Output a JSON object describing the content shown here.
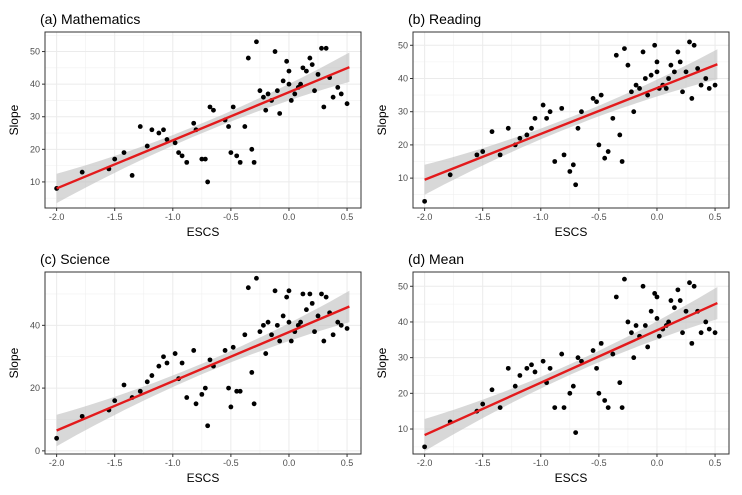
{
  "chart_data": [
    {
      "type": "scatter",
      "title": "(a) Mathematics",
      "xlabel": "ESCS",
      "ylabel": "Slope",
      "xlim": [
        -2.1,
        0.62
      ],
      "ylim": [
        2,
        56
      ],
      "xticks": [
        -2.0,
        -1.5,
        -1.0,
        -0.5,
        0.0,
        0.5
      ],
      "yticks": [
        10,
        20,
        30,
        40,
        50
      ],
      "xtick_labels": [
        "-2.0",
        "-1.5",
        "-1.0",
        "-0.5",
        "0.0",
        "0.5"
      ],
      "ytick_labels": [
        "10",
        "20",
        "30",
        "40",
        "50"
      ],
      "grid": true,
      "colors": {
        "points": "#000000",
        "fit_line": "#e31a1c",
        "confidence_band": "#bebebe"
      },
      "fit": {
        "x": [
          -2.0,
          0.52
        ],
        "y": [
          8.0,
          45.2
        ],
        "band_halfwidth_ends": 4.5,
        "band_halfwidth_center": 1.5
      },
      "points": {
        "x": [
          -2.0,
          -1.78,
          -1.55,
          -1.5,
          -1.42,
          -1.35,
          -1.28,
          -1.22,
          -1.18,
          -1.12,
          -1.08,
          -1.05,
          -0.98,
          -0.95,
          -0.92,
          -0.88,
          -0.82,
          -0.8,
          -0.75,
          -0.72,
          -0.7,
          -0.68,
          -0.65,
          -0.55,
          -0.52,
          -0.5,
          -0.48,
          -0.45,
          -0.42,
          -0.38,
          -0.35,
          -0.32,
          -0.3,
          -0.28,
          -0.25,
          -0.22,
          -0.2,
          -0.18,
          -0.15,
          -0.12,
          -0.1,
          -0.08,
          -0.05,
          -0.02,
          0.0,
          0.0,
          0.02,
          0.05,
          0.08,
          0.1,
          0.12,
          0.15,
          0.18,
          0.2,
          0.22,
          0.25,
          0.28,
          0.3,
          0.32,
          0.35,
          0.38,
          0.42,
          0.45,
          0.5
        ],
        "y": [
          8,
          13,
          14,
          17,
          19,
          12,
          27,
          21,
          26,
          25,
          26,
          23,
          22,
          19,
          18,
          16,
          28,
          26,
          17,
          17,
          10,
          33,
          32,
          29,
          27,
          19,
          33,
          18,
          16,
          27,
          48,
          20,
          16,
          53,
          38,
          36,
          32,
          37,
          35,
          50,
          38,
          31,
          41,
          47,
          44,
          40,
          35,
          37,
          39,
          40,
          45,
          44,
          48,
          46,
          38,
          43,
          51,
          33,
          51,
          42,
          36,
          39,
          37,
          34
        ]
      }
    },
    {
      "type": "scatter",
      "title": "(b) Reading",
      "xlabel": "ESCS",
      "ylabel": "Slope",
      "xlim": [
        -2.1,
        0.62
      ],
      "ylim": [
        1,
        54
      ],
      "xticks": [
        -2.0,
        -1.5,
        -1.0,
        -0.5,
        0.0,
        0.5
      ],
      "yticks": [
        10,
        20,
        30,
        40,
        50
      ],
      "xtick_labels": [
        "-2.0",
        "-1.5",
        "-1.0",
        "-0.5",
        "0.0",
        "0.5"
      ],
      "ytick_labels": [
        "10",
        "20",
        "30",
        "40",
        "50"
      ],
      "grid": true,
      "colors": {
        "points": "#000000",
        "fit_line": "#e31a1c",
        "confidence_band": "#bebebe"
      },
      "fit": {
        "x": [
          -2.0,
          0.52
        ],
        "y": [
          9.5,
          44.3
        ],
        "band_halfwidth_ends": 4.5,
        "band_halfwidth_center": 1.5
      },
      "points": {
        "x": [
          -2.0,
          -1.78,
          -1.55,
          -1.5,
          -1.42,
          -1.35,
          -1.28,
          -1.22,
          -1.18,
          -1.12,
          -1.08,
          -1.05,
          -0.98,
          -0.95,
          -0.92,
          -0.88,
          -0.82,
          -0.8,
          -0.75,
          -0.72,
          -0.7,
          -0.68,
          -0.65,
          -0.55,
          -0.52,
          -0.5,
          -0.48,
          -0.45,
          -0.42,
          -0.38,
          -0.35,
          -0.32,
          -0.3,
          -0.28,
          -0.25,
          -0.22,
          -0.2,
          -0.18,
          -0.15,
          -0.12,
          -0.1,
          -0.08,
          -0.05,
          -0.02,
          0.0,
          0.0,
          0.02,
          0.05,
          0.08,
          0.1,
          0.12,
          0.15,
          0.18,
          0.2,
          0.22,
          0.25,
          0.28,
          0.3,
          0.32,
          0.35,
          0.38,
          0.42,
          0.45,
          0.5
        ],
        "y": [
          3,
          11,
          17,
          18,
          24,
          17,
          25,
          20,
          22,
          23,
          25,
          28,
          32,
          28,
          30,
          15,
          31,
          17,
          12,
          14,
          8,
          25,
          30,
          34,
          33,
          20,
          35,
          16,
          18,
          28,
          47,
          23,
          15,
          49,
          44,
          36,
          30,
          38,
          37,
          48,
          40,
          35,
          41,
          50,
          45,
          42,
          37,
          38,
          37,
          40,
          44,
          42,
          48,
          45,
          36,
          42,
          51,
          34,
          50,
          43,
          38,
          40,
          37,
          38
        ]
      }
    },
    {
      "type": "scatter",
      "title": "(c) Science",
      "xlabel": "ESCS",
      "ylabel": "Slope",
      "xlim": [
        -2.1,
        0.62
      ],
      "ylim": [
        -1,
        57
      ],
      "xticks": [
        -2.0,
        -1.5,
        -1.0,
        -0.5,
        0.0,
        0.5
      ],
      "yticks": [
        0,
        20,
        40
      ],
      "xtick_labels": [
        "-2.0",
        "-1.5",
        "-1.0",
        "-0.5",
        "0.0",
        "0.5"
      ],
      "ytick_labels": [
        "0",
        "20",
        "40"
      ],
      "grid": true,
      "colors": {
        "points": "#000000",
        "fit_line": "#e31a1c",
        "confidence_band": "#bebebe"
      },
      "fit": {
        "x": [
          -2.0,
          0.52
        ],
        "y": [
          6.5,
          46.0
        ],
        "band_halfwidth_ends": 5.0,
        "band_halfwidth_center": 1.7
      },
      "points": {
        "x": [
          -2.0,
          -1.78,
          -1.55,
          -1.5,
          -1.42,
          -1.35,
          -1.28,
          -1.22,
          -1.18,
          -1.12,
          -1.08,
          -1.05,
          -0.98,
          -0.95,
          -0.92,
          -0.88,
          -0.82,
          -0.8,
          -0.75,
          -0.72,
          -0.7,
          -0.68,
          -0.65,
          -0.55,
          -0.52,
          -0.5,
          -0.48,
          -0.45,
          -0.42,
          -0.38,
          -0.35,
          -0.32,
          -0.3,
          -0.28,
          -0.25,
          -0.22,
          -0.2,
          -0.18,
          -0.15,
          -0.12,
          -0.1,
          -0.08,
          -0.05,
          -0.02,
          0.0,
          0.0,
          0.02,
          0.05,
          0.08,
          0.1,
          0.12,
          0.15,
          0.18,
          0.2,
          0.22,
          0.25,
          0.28,
          0.3,
          0.32,
          0.35,
          0.38,
          0.42,
          0.45,
          0.5
        ],
        "y": [
          4,
          11,
          13,
          16,
          21,
          17,
          19,
          22,
          24,
          27,
          30,
          28,
          31,
          23,
          28,
          17,
          32,
          15,
          18,
          20,
          8,
          29,
          27,
          32,
          20,
          14,
          33,
          19,
          19,
          37,
          52,
          25,
          15,
          55,
          38,
          40,
          31,
          41,
          37,
          51,
          40,
          35,
          43,
          49,
          51,
          41,
          35,
          38,
          40,
          41,
          50,
          45,
          50,
          47,
          38,
          43,
          50,
          35,
          49,
          44,
          37,
          41,
          40,
          39
        ]
      }
    },
    {
      "type": "scatter",
      "title": "(d) Mean",
      "xlabel": "ESCS",
      "ylabel": "Slope",
      "xlim": [
        -2.1,
        0.62
      ],
      "ylim": [
        3,
        54
      ],
      "xticks": [
        -2.0,
        -1.5,
        -1.0,
        -0.5,
        0.0,
        0.5
      ],
      "yticks": [
        10,
        20,
        30,
        40,
        50
      ],
      "xtick_labels": [
        "-2.0",
        "-1.5",
        "-1.0",
        "-0.5",
        "0.0",
        "0.5"
      ],
      "ytick_labels": [
        "10",
        "20",
        "30",
        "40",
        "50"
      ],
      "grid": true,
      "colors": {
        "points": "#000000",
        "fit_line": "#e31a1c",
        "confidence_band": "#bebebe"
      },
      "fit": {
        "x": [
          -2.0,
          0.52
        ],
        "y": [
          8.3,
          45.3
        ],
        "band_halfwidth_ends": 4.5,
        "band_halfwidth_center": 1.5
      },
      "points": {
        "x": [
          -2.0,
          -1.78,
          -1.55,
          -1.5,
          -1.42,
          -1.35,
          -1.28,
          -1.22,
          -1.18,
          -1.12,
          -1.08,
          -1.05,
          -0.98,
          -0.95,
          -0.92,
          -0.88,
          -0.82,
          -0.8,
          -0.75,
          -0.72,
          -0.7,
          -0.68,
          -0.65,
          -0.55,
          -0.52,
          -0.5,
          -0.48,
          -0.45,
          -0.42,
          -0.38,
          -0.35,
          -0.32,
          -0.3,
          -0.28,
          -0.25,
          -0.22,
          -0.2,
          -0.18,
          -0.15,
          -0.12,
          -0.1,
          -0.08,
          -0.05,
          -0.02,
          0.0,
          0.0,
          0.02,
          0.05,
          0.08,
          0.1,
          0.12,
          0.15,
          0.18,
          0.2,
          0.22,
          0.25,
          0.28,
          0.3,
          0.32,
          0.35,
          0.38,
          0.42,
          0.45,
          0.5
        ],
        "y": [
          5,
          12,
          15,
          17,
          21,
          16,
          27,
          22,
          25,
          27,
          28,
          26,
          29,
          23,
          27,
          16,
          31,
          16,
          20,
          22,
          9,
          30,
          29,
          32,
          27,
          20,
          34,
          18,
          16,
          31,
          47,
          23,
          16,
          52,
          40,
          37,
          30,
          39,
          36,
          50,
          39,
          33,
          43,
          48,
          47,
          41,
          36,
          38,
          39,
          40,
          46,
          44,
          49,
          46,
          37,
          43,
          51,
          34,
          50,
          43,
          37,
          40,
          38,
          37
        ]
      }
    }
  ]
}
